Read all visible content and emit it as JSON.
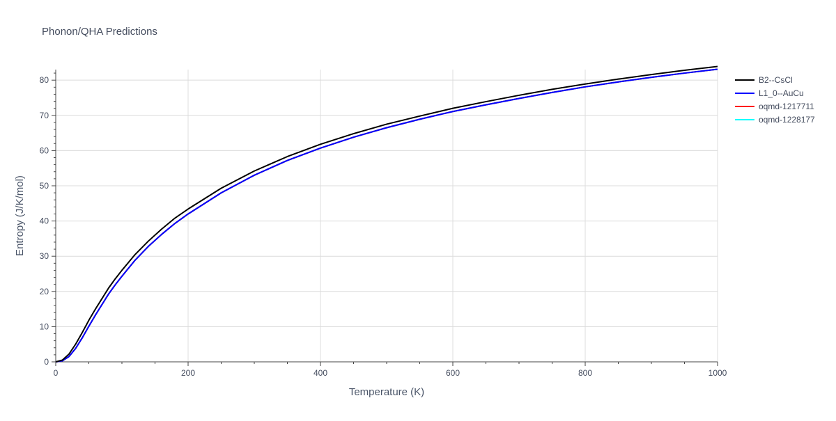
{
  "chart_data": {
    "type": "line",
    "title": "Phonon/QHA Predictions",
    "xlabel": "Temperature (K)",
    "ylabel": "Entropy (J/K/mol)",
    "xlim": [
      0,
      1000
    ],
    "ylim": [
      0,
      83
    ],
    "x_ticks": [
      0,
      200,
      400,
      600,
      800,
      1000
    ],
    "y_ticks": [
      0,
      10,
      20,
      30,
      40,
      50,
      60,
      70,
      80
    ],
    "grid": true,
    "legend_position": "top-right",
    "x": [
      0,
      10,
      20,
      30,
      40,
      50,
      60,
      70,
      80,
      90,
      100,
      120,
      140,
      160,
      180,
      200,
      250,
      300,
      350,
      400,
      450,
      500,
      550,
      600,
      650,
      700,
      750,
      800,
      850,
      900,
      950,
      1000
    ],
    "series": [
      {
        "name": "B2--CsCl",
        "color": "#000000",
        "values": [
          0,
          0.5,
          2.2,
          5.0,
          8.3,
          11.8,
          15.0,
          18.0,
          21.0,
          23.6,
          26.0,
          30.5,
          34.3,
          37.7,
          40.8,
          43.4,
          49.3,
          54.2,
          58.3,
          61.8,
          64.8,
          67.5,
          69.8,
          72.0,
          73.9,
          75.7,
          77.4,
          78.9,
          80.3,
          81.6,
          82.8,
          83.9
        ]
      },
      {
        "name": "L1_0--AuCu",
        "color": "#0000ff",
        "values": [
          0,
          0.3,
          1.5,
          3.8,
          6.8,
          10.1,
          13.3,
          16.3,
          19.3,
          21.9,
          24.3,
          28.9,
          32.8,
          36.2,
          39.3,
          42.0,
          48.0,
          53.0,
          57.2,
          60.7,
          63.8,
          66.5,
          68.9,
          71.1,
          73.0,
          74.8,
          76.5,
          78.1,
          79.5,
          80.8,
          82.0,
          83.1
        ]
      },
      {
        "name": "oqmd-1217711",
        "color": "#ff0000",
        "values": [
          0,
          0.3,
          1.5,
          3.8,
          6.8,
          10.1,
          13.3,
          16.3,
          19.3,
          21.9,
          24.3,
          28.9,
          32.8,
          36.2,
          39.3,
          42.0,
          48.0,
          53.0,
          57.2,
          60.7,
          63.8,
          66.5,
          68.9,
          71.1,
          73.0,
          74.8,
          76.5,
          78.1,
          79.5,
          80.8,
          82.0,
          83.1
        ]
      },
      {
        "name": "oqmd-1228177",
        "color": "#00ffff",
        "values": [
          0,
          0.3,
          1.5,
          3.8,
          6.8,
          10.1,
          13.3,
          16.3,
          19.3,
          21.9,
          24.3,
          28.9,
          32.8,
          36.2,
          39.3,
          42.0,
          48.0,
          53.0,
          57.2,
          60.7,
          63.8,
          66.5,
          68.9,
          71.1,
          73.0,
          74.8,
          76.5,
          78.1,
          79.5,
          80.8,
          82.0,
          83.1
        ]
      }
    ]
  }
}
